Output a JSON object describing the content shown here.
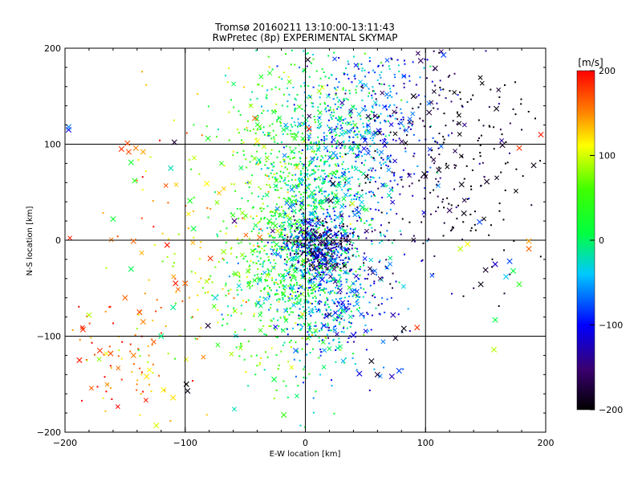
{
  "chart_data": {
    "type": "scatter",
    "title": "Tromsø 20160211 13:10:00-13:11:43",
    "subtitle": "RwPretec (8p) EXPERIMENTAL SKYMAP",
    "xlabel": "E-W location [km]",
    "ylabel": "N-S location [km]",
    "xlim": [
      -200,
      200
    ],
    "ylim": [
      -200,
      200
    ],
    "xticks": [
      -200,
      -100,
      0,
      100,
      200
    ],
    "yticks": [
      -200,
      -100,
      0,
      100,
      200
    ],
    "grid": true,
    "colorbar": {
      "label": "[m/s]",
      "range": [
        -200,
        200
      ],
      "ticks": [
        200,
        100,
        0,
        -100,
        -200
      ],
      "colormap": "rainbow: black → purple → blue → cyan → green → yellow → red"
    },
    "colors": {
      "black": "#000000",
      "purple": "#4b0082",
      "blue": "#0000ff",
      "cyan": "#00c8ff",
      "green": "#00ff00",
      "yellow": "#ffff00",
      "red": "#ff0000"
    },
    "points": [
      {
        "x": -185,
        "y": -93,
        "v": 180
      },
      {
        "x": -143,
        "y": -1,
        "v": 160
      },
      {
        "x": -147,
        "y": 92,
        "v": 170
      },
      {
        "x": -141,
        "y": 96,
        "v": 150
      },
      {
        "x": -135,
        "y": 92,
        "v": 140
      },
      {
        "x": -153,
        "y": 95,
        "v": 180
      },
      {
        "x": -148,
        "y": 101,
        "v": 170
      },
      {
        "x": -145,
        "y": 81,
        "v": 20
      },
      {
        "x": -142,
        "y": 62,
        "v": 40
      },
      {
        "x": -160,
        "y": 22,
        "v": 20
      },
      {
        "x": -180,
        "y": -78,
        "v": 90
      },
      {
        "x": -188,
        "y": -125,
        "v": 190
      },
      {
        "x": -171,
        "y": -115,
        "v": 180
      },
      {
        "x": -162,
        "y": -118,
        "v": 170
      },
      {
        "x": -143,
        "y": -120,
        "v": 150
      },
      {
        "x": -132,
        "y": -142,
        "v": 120
      },
      {
        "x": -118,
        "y": -156,
        "v": 110
      },
      {
        "x": -110,
        "y": -164,
        "v": 120
      },
      {
        "x": -124,
        "y": -193,
        "v": 100
      },
      {
        "x": -150,
        "y": -60,
        "v": 160
      },
      {
        "x": -138,
        "y": -75,
        "v": 170
      },
      {
        "x": -145,
        "y": -30,
        "v": 5
      },
      {
        "x": -135,
        "y": -85,
        "v": 150
      },
      {
        "x": -115,
        "y": -5,
        "v": 190
      },
      {
        "x": -108,
        "y": -45,
        "v": 190
      },
      {
        "x": -100,
        "y": -45,
        "v": 160
      },
      {
        "x": -112,
        "y": 75,
        "v": -20
      },
      {
        "x": -109,
        "y": 102,
        "v": -180
      },
      {
        "x": -96,
        "y": 41,
        "v": 30
      },
      {
        "x": -93,
        "y": 12,
        "v": 10
      },
      {
        "x": -82,
        "y": 59,
        "v": 110
      },
      {
        "x": -81,
        "y": 106,
        "v": 30
      },
      {
        "x": -79,
        "y": -19,
        "v": 180
      },
      {
        "x": -81,
        "y": -89,
        "v": -180
      },
      {
        "x": -98,
        "y": -157,
        "v": -200
      },
      {
        "x": -99,
        "y": -150,
        "v": -210
      },
      {
        "x": -75,
        "y": -60,
        "v": -30
      },
      {
        "x": -68,
        "y": -12,
        "v": 80
      },
      {
        "x": -59,
        "y": 20,
        "v": -150
      },
      {
        "x": -42,
        "y": 127,
        "v": 160
      },
      {
        "x": -40,
        "y": 103,
        "v": 110
      },
      {
        "x": -38,
        "y": 3,
        "v": 160
      },
      {
        "x": -30,
        "y": 20,
        "v": 20
      },
      {
        "x": -26,
        "y": -145,
        "v": 10
      },
      {
        "x": -18,
        "y": -182,
        "v": 50
      },
      {
        "x": -8,
        "y": -115,
        "v": -70
      },
      {
        "x": -3,
        "y": 34,
        "v": 40
      },
      {
        "x": 2,
        "y": 188,
        "v": -200
      },
      {
        "x": 3,
        "y": 116,
        "v": 190
      },
      {
        "x": 6,
        "y": -14,
        "v": -200
      },
      {
        "x": 14,
        "y": -41,
        "v": -100
      },
      {
        "x": 21,
        "y": 41,
        "v": -190
      },
      {
        "x": 23,
        "y": 59,
        "v": -190
      },
      {
        "x": 39,
        "y": 38,
        "v": 100
      },
      {
        "x": 40,
        "y": -99,
        "v": -110
      },
      {
        "x": 45,
        "y": -139,
        "v": -110
      },
      {
        "x": 55,
        "y": -126,
        "v": -200
      },
      {
        "x": 60,
        "y": -140,
        "v": -180
      },
      {
        "x": 72,
        "y": -142,
        "v": -120
      },
      {
        "x": 78,
        "y": -136,
        "v": -80
      },
      {
        "x": 75,
        "y": -102,
        "v": -190
      },
      {
        "x": 82,
        "y": -92,
        "v": -200
      },
      {
        "x": 73,
        "y": -78,
        "v": -130
      },
      {
        "x": 93,
        "y": -91,
        "v": 180
      },
      {
        "x": 96,
        "y": 187,
        "v": -160
      },
      {
        "x": 108,
        "y": 179,
        "v": -180
      },
      {
        "x": 115,
        "y": 193,
        "v": -80
      },
      {
        "x": 103,
        "y": 133,
        "v": -180
      },
      {
        "x": 90,
        "y": 150,
        "v": -200
      },
      {
        "x": 99,
        "y": 69,
        "v": -200
      },
      {
        "x": 111,
        "y": 73,
        "v": -190
      },
      {
        "x": 120,
        "y": 31,
        "v": -160
      },
      {
        "x": 130,
        "y": 58,
        "v": -200
      },
      {
        "x": 132,
        "y": 28,
        "v": -200
      },
      {
        "x": 145,
        "y": 19,
        "v": -80
      },
      {
        "x": 151,
        "y": 61,
        "v": -190
      },
      {
        "x": 135,
        "y": -4,
        "v": 110
      },
      {
        "x": 129,
        "y": -9,
        "v": 90
      },
      {
        "x": 146,
        "y": -46,
        "v": -200
      },
      {
        "x": 150,
        "y": -31,
        "v": -190
      },
      {
        "x": 158,
        "y": -25,
        "v": -120
      },
      {
        "x": 170,
        "y": -22,
        "v": -80
      },
      {
        "x": 173,
        "y": -32,
        "v": 10
      },
      {
        "x": 167,
        "y": -38,
        "v": -40
      },
      {
        "x": 178,
        "y": -46,
        "v": 40
      },
      {
        "x": 186,
        "y": -1,
        "v": 140
      },
      {
        "x": 186,
        "y": -9,
        "v": 160
      },
      {
        "x": 190,
        "y": 78,
        "v": -200
      },
      {
        "x": 164,
        "y": 99,
        "v": -190
      },
      {
        "x": 178,
        "y": 96,
        "v": 180
      },
      {
        "x": 196,
        "y": 110,
        "v": 190
      },
      {
        "x": 159,
        "y": 137,
        "v": -200
      },
      {
        "x": 158,
        "y": -83,
        "v": 10
      },
      {
        "x": 157,
        "y": -114,
        "v": 90
      },
      {
        "x": -197,
        "y": 115,
        "v": -110
      },
      {
        "x": -197,
        "y": 118,
        "v": -60
      },
      {
        "x": -110,
        "y": -70,
        "v": -10
      },
      {
        "x": -120,
        "y": -100,
        "v": -5
      },
      {
        "x": -58,
        "y": -35,
        "v": 60
      },
      {
        "x": 30,
        "y": -70,
        "v": -60
      },
      {
        "x": -25,
        "y": 15,
        "v": 40
      }
    ]
  }
}
